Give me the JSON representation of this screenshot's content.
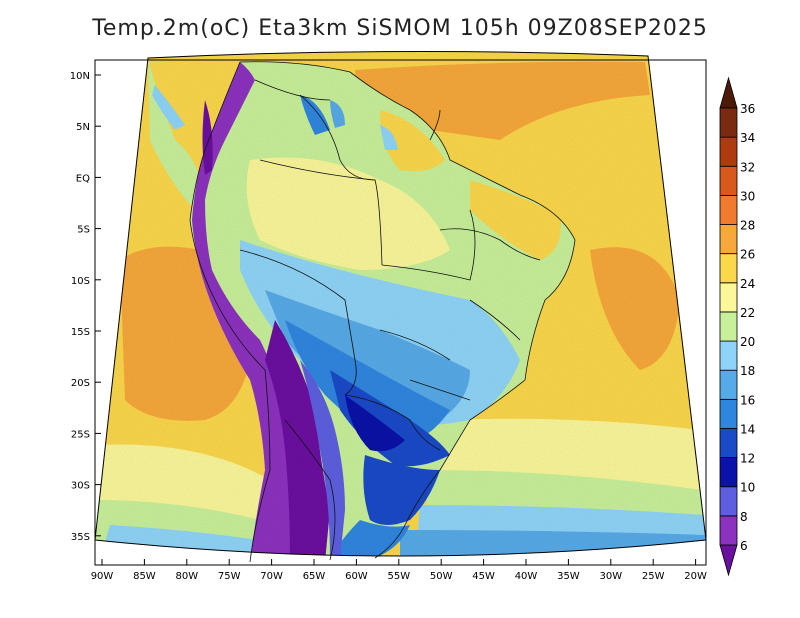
{
  "title": "Temp.2m(oC) Eta3km SiSMOM 105h 09Z08SEP2025",
  "map": {
    "variable": "2 m temperature",
    "unit": "oC",
    "model": "Eta3km",
    "lat_ticks": [
      "10N",
      "5N",
      "EQ",
      "5S",
      "10S",
      "15S",
      "20S",
      "25S",
      "30S",
      "35S"
    ],
    "lon_ticks": [
      "90W",
      "85W",
      "80W",
      "75W",
      "70W",
      "65W",
      "60W",
      "55W",
      "50W",
      "45W",
      "40W",
      "35W",
      "30W",
      "25W",
      "20W"
    ]
  },
  "colorbar": {
    "labels": [
      "6",
      "8",
      "10",
      "12",
      "14",
      "16",
      "18",
      "20",
      "22",
      "24",
      "26",
      "28",
      "30",
      "32",
      "34",
      "36"
    ],
    "colors": [
      "#6b0fa0",
      "#8c32c0",
      "#5d5fe0",
      "#0a12a8",
      "#1a4ac8",
      "#2f86df",
      "#57aae8",
      "#8fd4f8",
      "#c8f09a",
      "#fbf79a",
      "#fbd74a",
      "#f7a83a",
      "#f07a2e",
      "#d9581c",
      "#b03a10",
      "#7a2a10",
      "#4e1a08"
    ]
  }
}
